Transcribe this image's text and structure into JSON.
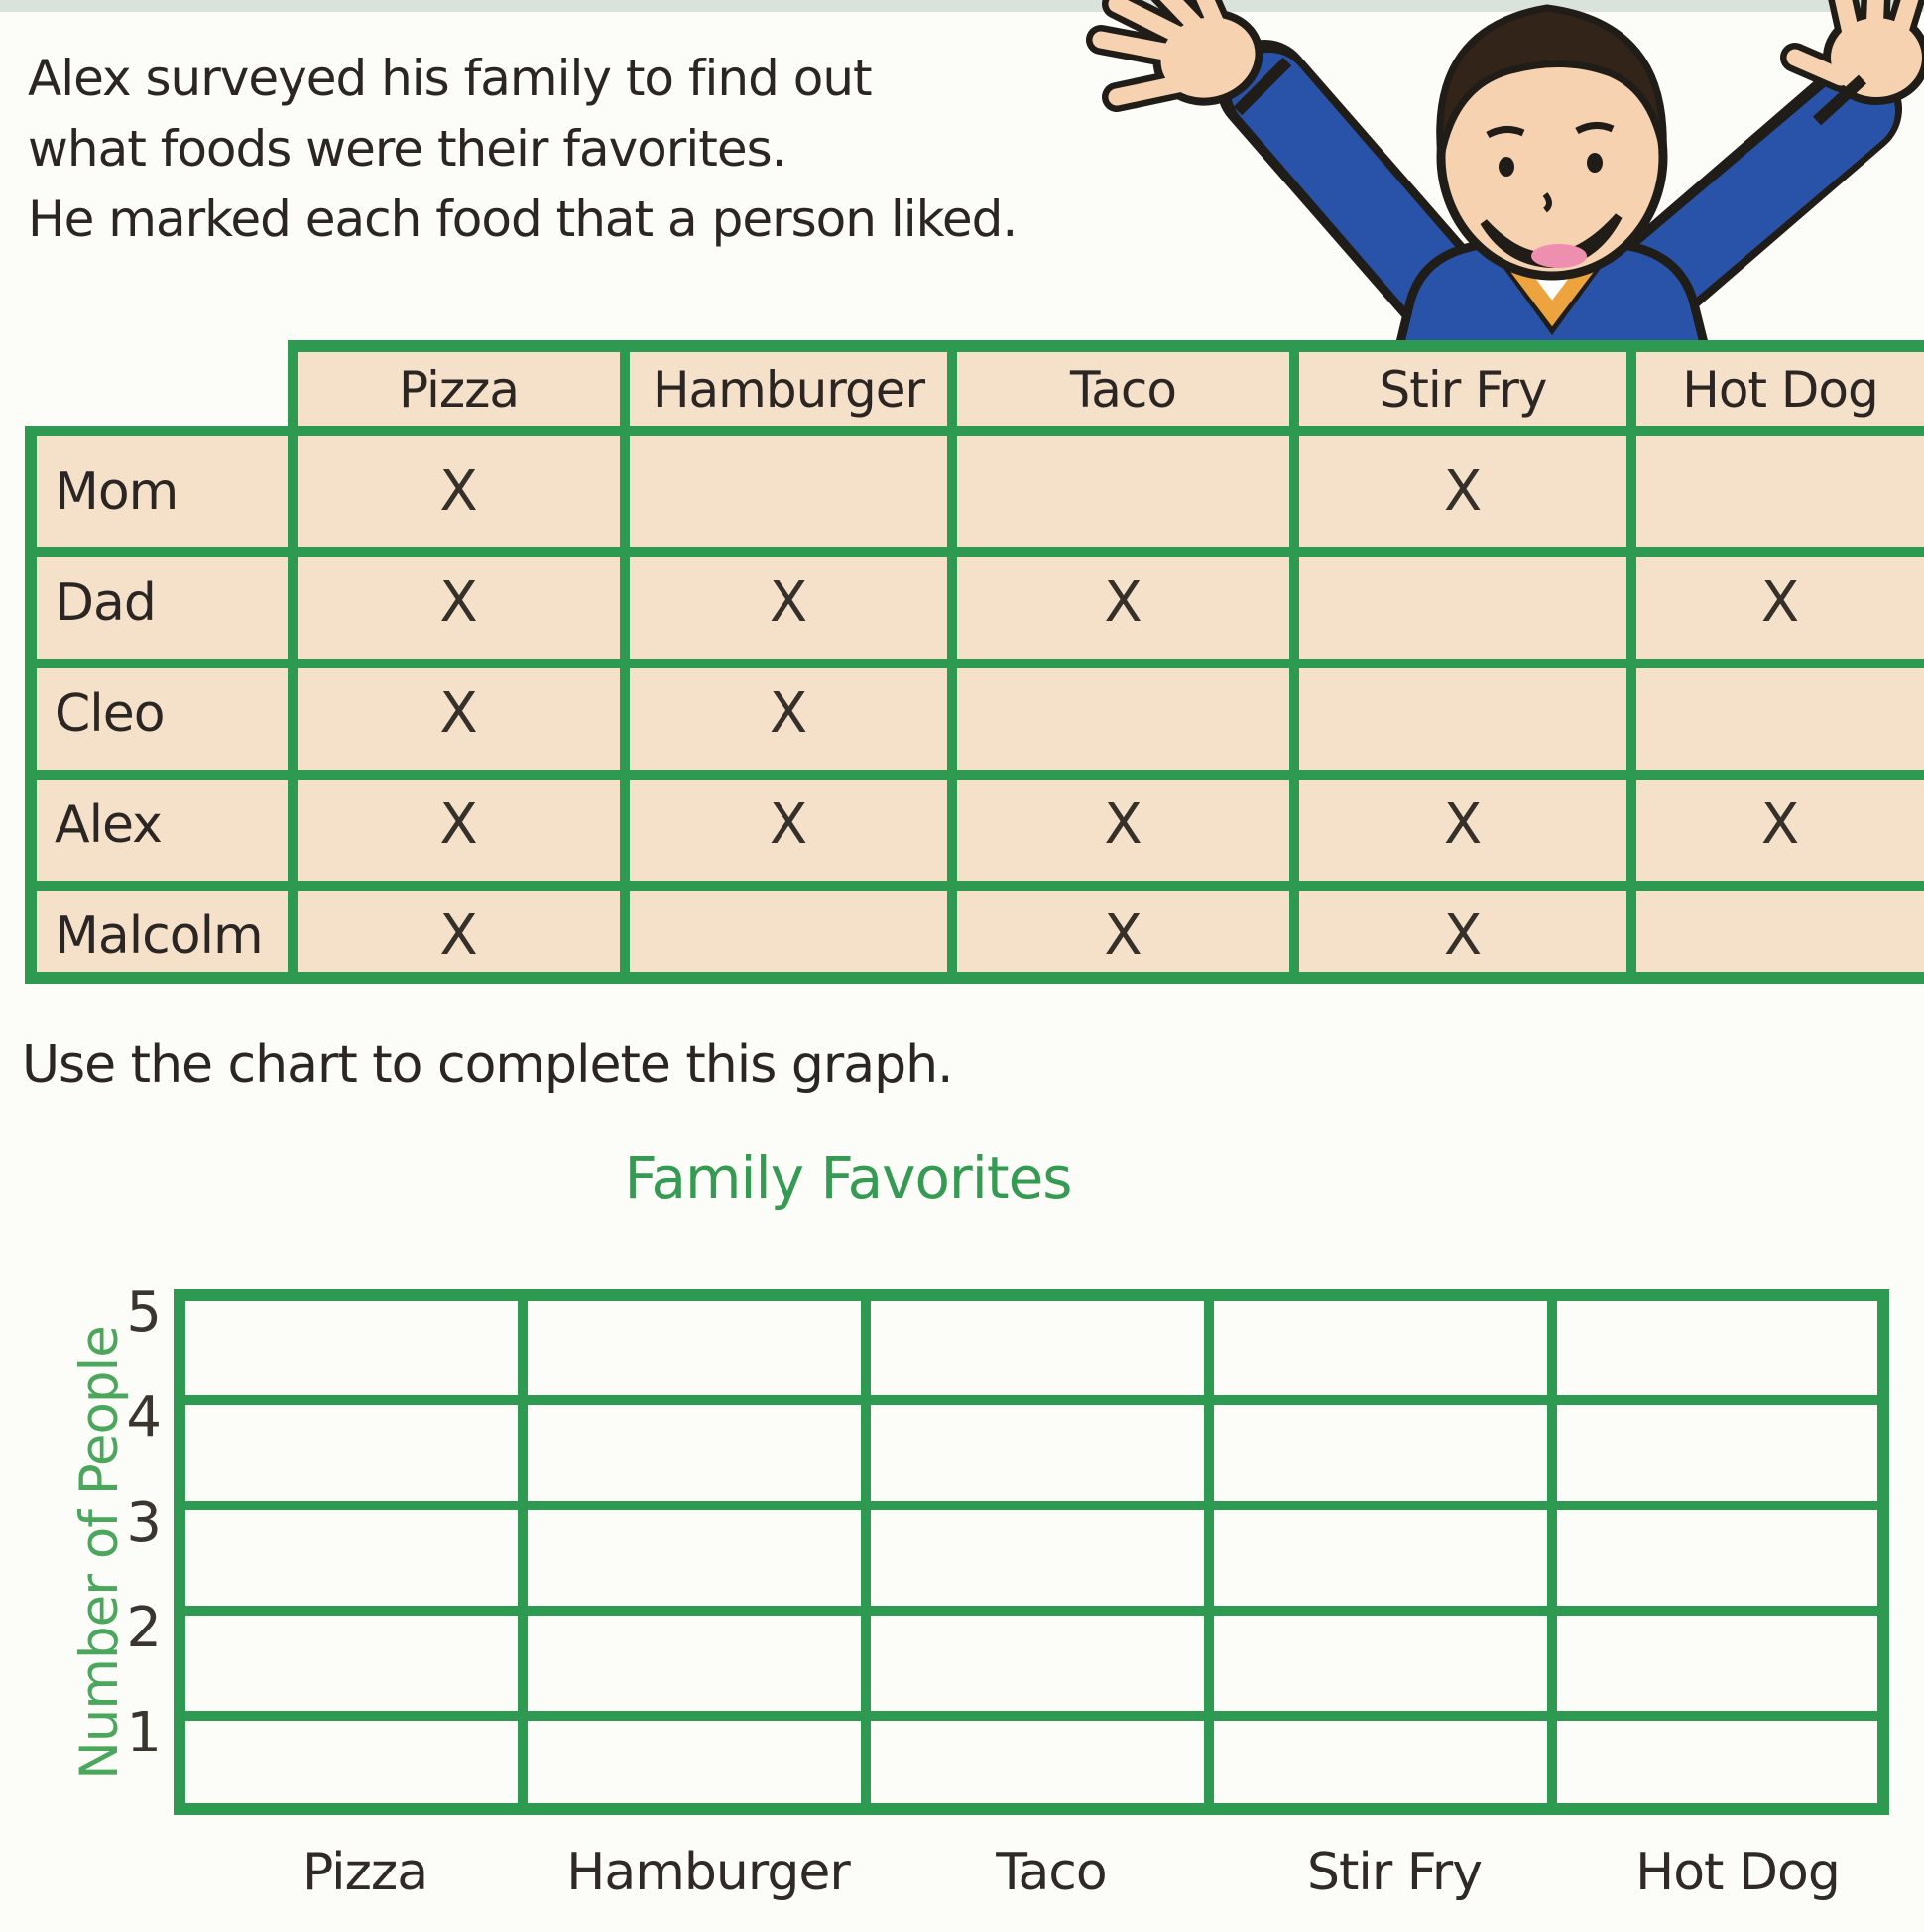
{
  "page": {
    "intro_lines": [
      "Alex surveyed his family to find out",
      "what foods were their favorites.",
      "He marked each food that a person liked."
    ],
    "instruction": "Use the chart to complete this graph."
  },
  "survey_table": {
    "columns": [
      "Pizza",
      "Hamburger",
      "Taco",
      "Stir Fry",
      "Hot Dog"
    ],
    "mark_symbol": "X",
    "rows": [
      {
        "name": "Mom",
        "marks": [
          "X",
          "",
          "",
          "X",
          ""
        ]
      },
      {
        "name": "Dad",
        "marks": [
          "X",
          "X",
          "X",
          "",
          "X"
        ]
      },
      {
        "name": "Cleo",
        "marks": [
          "X",
          "X",
          "",
          "",
          ""
        ]
      },
      {
        "name": "Alex",
        "marks": [
          "X",
          "X",
          "X",
          "X",
          "X"
        ]
      },
      {
        "name": "Malcolm",
        "marks": [
          "X",
          "",
          "X",
          "X",
          ""
        ]
      }
    ]
  },
  "chart_data": {
    "type": "bar",
    "title": "Family Favorites",
    "ylabel": "Number of People",
    "xlabel": "",
    "categories": [
      "Pizza",
      "Hamburger",
      "Taco",
      "Stir Fry",
      "Hot Dog"
    ],
    "values": [
      null,
      null,
      null,
      null,
      null
    ],
    "ylim": [
      0,
      5
    ],
    "yticks": [
      5,
      4,
      3,
      2,
      1
    ],
    "grid": true,
    "legend": false
  },
  "colors": {
    "grid_green": "#2e9950",
    "title_green": "#359a52",
    "axis_label_green": "#4aa75c",
    "cell_tan": "#f5e1c9",
    "text_dark": "#2b2623",
    "top_strip": "#d9e3dc",
    "boy_sweater_blue": "#2853a8",
    "boy_trim_orange": "#eda43e",
    "boy_skin": "#f6d2b0",
    "boy_hair": "#33241a",
    "boy_outline": "#201c18",
    "boy_tongue": "#ef8fb0"
  },
  "illustration": {
    "name": "boy-cheering-illustration"
  }
}
